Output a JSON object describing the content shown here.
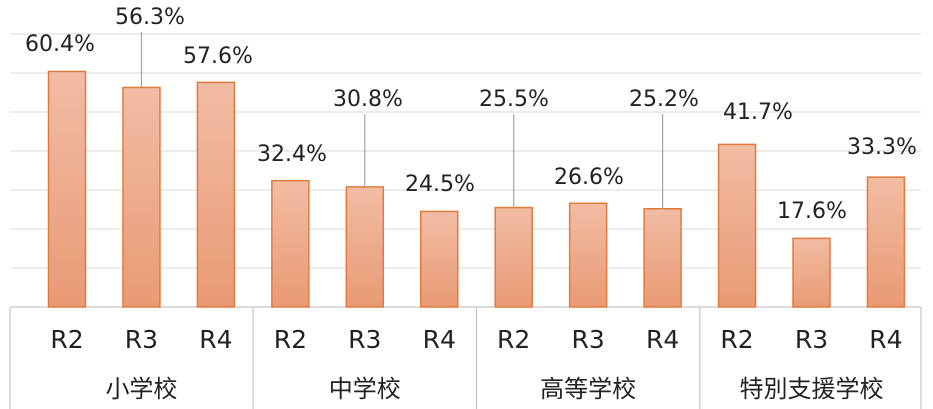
{
  "chart_data": {
    "type": "bar",
    "categories": [
      "R2",
      "R3",
      "R4",
      "R2",
      "R3",
      "R4",
      "R2",
      "R3",
      "R4",
      "R2",
      "R3",
      "R4"
    ],
    "groups": [
      "小学校",
      "中学校",
      "高等学校",
      "特別支援学校"
    ],
    "values": [
      60.4,
      56.3,
      57.6,
      32.4,
      30.8,
      24.5,
      25.5,
      26.6,
      25.2,
      41.7,
      17.6,
      33.3
    ],
    "value_labels": [
      "60.4%",
      "56.3%",
      "57.6%",
      "32.4%",
      "30.8%",
      "24.5%",
      "25.5%",
      "26.6%",
      "25.2%",
      "41.7%",
      "17.6%",
      "33.3%"
    ],
    "color": "#eda585",
    "ylim": [
      0,
      70
    ],
    "yticks": [
      0,
      10,
      20,
      30,
      40,
      50,
      60,
      70
    ],
    "grid": true
  }
}
